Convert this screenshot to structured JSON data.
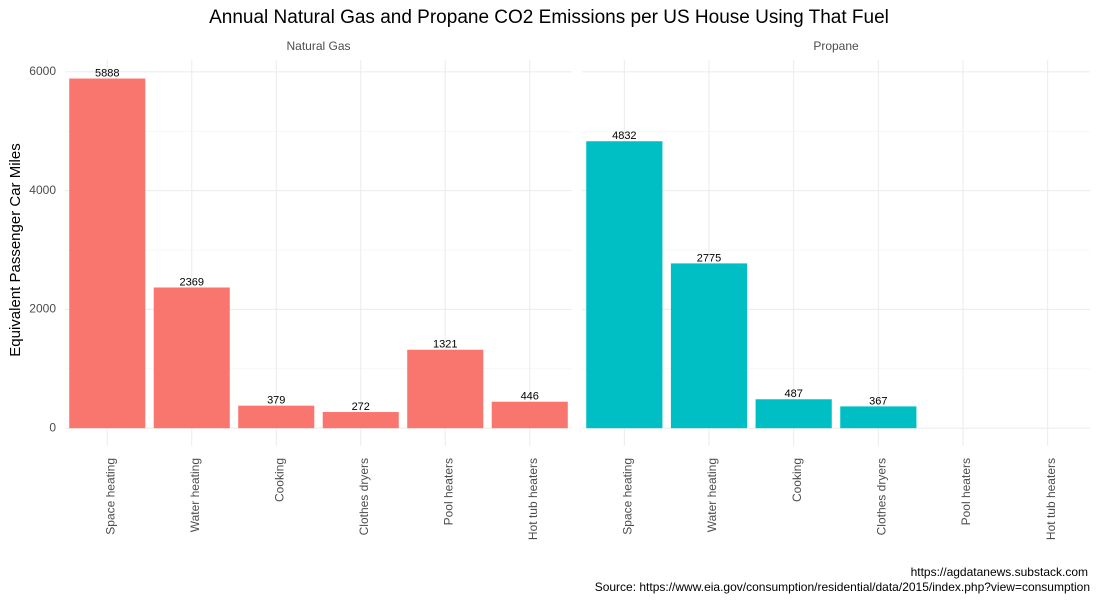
{
  "chart_data": {
    "type": "bar",
    "title": "Annual Natural Gas and Propane CO2 Emissions per US House Using That Fuel",
    "ylabel": "Equivalent Passenger Car Miles",
    "caption": [
      "https://agdatanews.substack.com",
      "Source: https://www.eia.gov/consumption/residential/data/2015/index.php?view=consumption"
    ],
    "ylim": [
      -300,
      6200
    ],
    "yticks": [
      0,
      2000,
      4000,
      6000
    ],
    "minor_yticks": [
      1000,
      3000,
      5000
    ],
    "grid": true,
    "facets": [
      {
        "title": "Natural Gas",
        "color": "#f8766d",
        "categories": [
          "Space heating",
          "Water heating",
          "Cooking",
          "Clothes dryers",
          "Pool heaters",
          "Hot tub heaters"
        ],
        "values": [
          5888,
          2369,
          379,
          272,
          1321,
          446
        ]
      },
      {
        "title": "Propane",
        "color": "#00bfc4",
        "categories": [
          "Space heating",
          "Water heating",
          "Cooking",
          "Clothes dryers",
          "Pool heaters",
          "Hot tub heaters"
        ],
        "values": [
          4832,
          2775,
          487,
          367,
          null,
          null
        ]
      }
    ]
  }
}
